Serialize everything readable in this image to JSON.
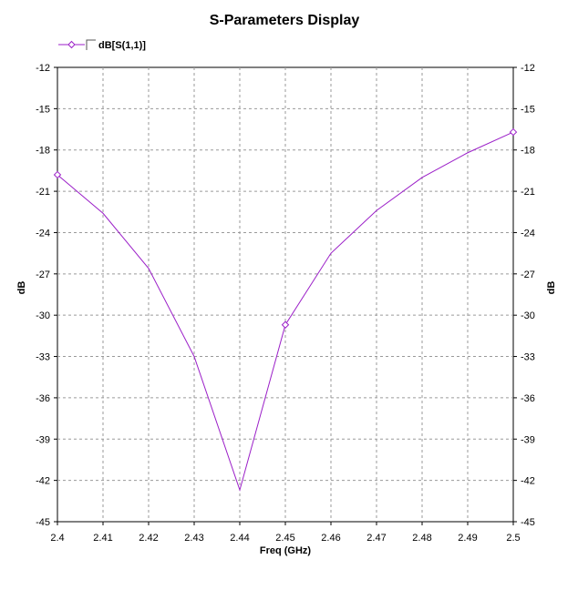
{
  "chart_data": {
    "type": "line",
    "title": "S-Parameters Display",
    "xlabel": "Freq (GHz)",
    "ylabel_left": "dB",
    "ylabel_right": "dB",
    "xlim": [
      2.4,
      2.5
    ],
    "ylim": [
      -45,
      -12
    ],
    "x_ticks": [
      "2.4",
      "2.41",
      "2.42",
      "2.43",
      "2.44",
      "2.45",
      "2.46",
      "2.47",
      "2.48",
      "2.49",
      "2.5"
    ],
    "y_ticks": [
      "-12",
      "-15",
      "-18",
      "-21",
      "-24",
      "-27",
      "-30",
      "-33",
      "-36",
      "-39",
      "-42",
      "-45"
    ],
    "grid": true,
    "legend": "top-left",
    "series": [
      {
        "name": "dB[S(1,1)]",
        "color": "#9b1fc8",
        "marker": "diamond",
        "x": [
          2.4,
          2.41,
          2.42,
          2.43,
          2.44,
          2.45,
          2.46,
          2.47,
          2.48,
          2.49,
          2.5
        ],
        "y": [
          -19.8,
          -22.6,
          -26.6,
          -33.0,
          -42.7,
          -30.7,
          -25.5,
          -22.4,
          -20.0,
          -18.2,
          -16.7
        ],
        "marker_points": [
          2.4,
          2.45,
          2.5
        ]
      }
    ]
  }
}
